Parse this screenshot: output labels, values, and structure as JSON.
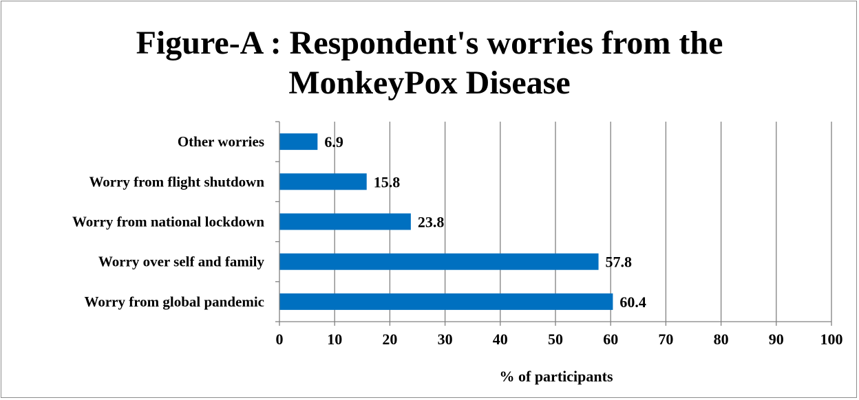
{
  "title_line1": "Figure-A : Respondent's worries from the",
  "title_line2": "MonkeyPox Disease",
  "chart_data": {
    "type": "bar",
    "orientation": "horizontal",
    "title": "Figure-A : Respondent's worries from the MonkeyPox Disease",
    "categories": [
      "Worry from global pandemic",
      "Worry over self and family",
      "Worry from national lockdown",
      "Worry from flight shutdown",
      "Other worries"
    ],
    "values": [
      60.4,
      57.8,
      23.8,
      15.8,
      6.9
    ],
    "data_labels": [
      "60.4",
      "57.8",
      "23.8",
      "15.8",
      "6.9"
    ],
    "xlabel": "% of participants",
    "ylabel": "",
    "xlim": [
      0,
      100
    ],
    "xticks": [
      0,
      10,
      20,
      30,
      40,
      50,
      60,
      70,
      80,
      90,
      100
    ],
    "grid": "vertical",
    "legend": "none",
    "bar_color": "#0070C0",
    "grid_color": "#808080"
  }
}
